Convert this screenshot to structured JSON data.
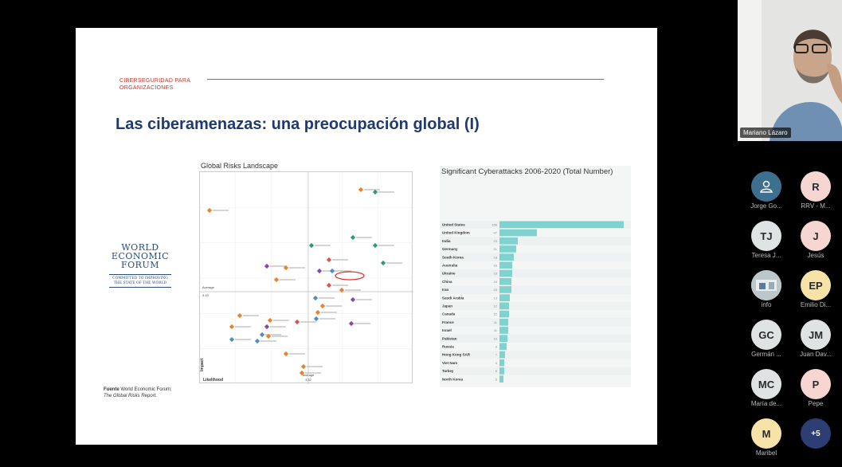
{
  "slide": {
    "header": "CIBERSEGURIDAD PARA ORGANIZACIONES",
    "title": "Las ciberamenazas: una preocupación global (I)",
    "logo": {
      "name_lines": [
        "WORLD",
        "ECONOMIC",
        "FORUM"
      ],
      "tagline": "COMMITTED TO IMPROVING THE STATE OF THE WORLD"
    },
    "source_bold": "Fuente",
    "source_text": " World Economic Forum;",
    "source_italic": "The Global Risks Report."
  },
  "risks_chart": {
    "title": "Global Risks Landscape",
    "xlabel": "Likelihood",
    "ylabel": "Impact",
    "average_label": "Average",
    "x_average_value": "3.32",
    "y_average_value": "3.43",
    "risk_colors": {
      "economic": "#4a90c2",
      "environmental": "#2a9d6a",
      "geopolitical": "#e8822a",
      "societal": "#d9534f",
      "technological": "#8e44ad"
    }
  },
  "chart_data": {
    "type": "bar",
    "title": "Significant Cyberattacks 2006-2020 (Total Number)",
    "categories": [
      "United States",
      "United Kingdom",
      "India",
      "Germany",
      "South Korea",
      "Australia",
      "Ukraine",
      "China",
      "Iran",
      "Saudi Arabia",
      "Japan",
      "Canada",
      "France",
      "Israel",
      "Pakistan",
      "Russia",
      "Hong Kong SAR",
      "Viet Nam",
      "Turkey",
      "North Korea"
    ],
    "values": [
      156,
      47,
      23,
      21,
      18,
      16,
      16,
      15,
      15,
      13,
      12,
      12,
      11,
      11,
      10,
      9,
      7,
      6,
      6,
      5
    ],
    "xlim": [
      0,
      160
    ]
  },
  "meeting": {
    "presenter": "Mariano Lázaro",
    "participants": [
      {
        "initials": "",
        "icon": "user-icon",
        "name": "Jorge Go...",
        "color": "#3d6f8e"
      },
      {
        "initials": "R",
        "name": "RRV - M...",
        "color": "#f7d5d0"
      },
      {
        "initials": "TJ",
        "name": "Teresa J...",
        "color": "#e0e3e3"
      },
      {
        "initials": "J",
        "name": "Jesús",
        "color": "#f7d5d0"
      },
      {
        "initials": "",
        "icon": "photo-avatar",
        "name": "info",
        "color": "#bcc7cc"
      },
      {
        "initials": "EP",
        "name": "Emilio Di...",
        "color": "#f7e2a8"
      },
      {
        "initials": "GC",
        "name": "Germán ...",
        "color": "#e0e3e3"
      },
      {
        "initials": "JM",
        "name": "Juan Dav...",
        "color": "#e0e3e3"
      },
      {
        "initials": "MC",
        "name": "María de...",
        "color": "#e0e3e3"
      },
      {
        "initials": "P",
        "name": "Pepe",
        "color": "#f7d5d0"
      },
      {
        "initials": "M",
        "name": "Maribel",
        "color": "#f7e2a8"
      },
      {
        "initials": "+5",
        "name": "",
        "color": "#2c3e73"
      }
    ]
  }
}
